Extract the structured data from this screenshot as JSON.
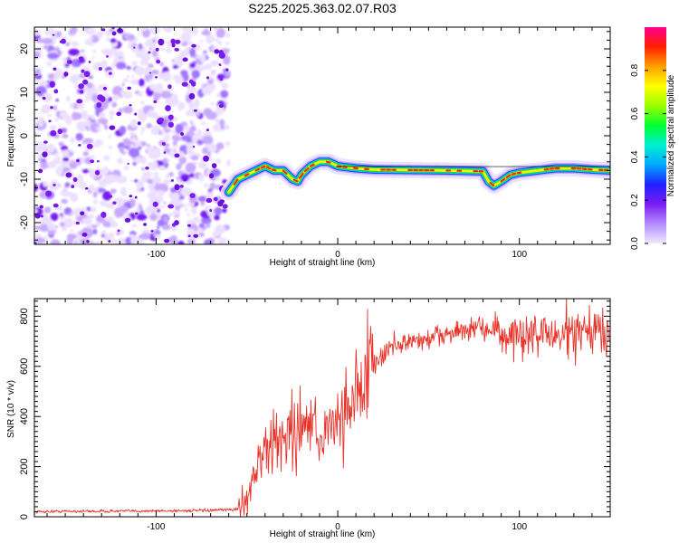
{
  "title": "S225.2025.363.02.07.R03",
  "colors": {
    "line": "#e8332a",
    "ridge_core": "#ff2222",
    "ridge_mid": "#00e040",
    "ridge_edge": "#2040ff",
    "noise": "#7a1cf0",
    "colormap": [
      "#f2e8ff",
      "#b28cff",
      "#7a1cf0",
      "#2020ff",
      "#00a8ff",
      "#00f0d0",
      "#00ff30",
      "#9cff00",
      "#ffff00",
      "#ffa000",
      "#ff2000",
      "#ff0090"
    ]
  },
  "chart_data": [
    {
      "type": "heatmap",
      "name": "spectrogram",
      "xlabel": "Height of straight line (km)",
      "ylabel": "Frequency (Hz)",
      "xlim": [
        -167,
        150
      ],
      "ylim": [
        -25,
        25
      ],
      "xticks": [
        -100,
        0,
        100
      ],
      "yticks": [
        -20,
        -10,
        0,
        10,
        20
      ],
      "colorbar": {
        "label": "Normalized spectral amplitude",
        "range": [
          0,
          1
        ],
        "ticks": [
          "0.0",
          "0.2",
          "0.4",
          "0.6",
          "0.8"
        ]
      },
      "noise_region_x": [
        -167,
        -60
      ],
      "signal_ridge": {
        "x": [
          -60,
          -55,
          -50,
          -45,
          -40,
          -35,
          -30,
          -25,
          -22,
          -20,
          -15,
          -10,
          -5,
          0,
          10,
          20,
          40,
          60,
          80,
          83,
          86,
          90,
          95,
          100,
          110,
          120,
          130,
          140,
          150
        ],
        "freq": [
          -13,
          -10,
          -9,
          -8,
          -7,
          -8,
          -8,
          -10,
          -10.5,
          -9,
          -7,
          -6,
          -6,
          -7,
          -7.5,
          -7.8,
          -7.9,
          -8.0,
          -8.2,
          -10.5,
          -11.5,
          -10.5,
          -9,
          -8.5,
          -8,
          -7.5,
          -7.5,
          -7.8,
          -8.0
        ]
      }
    },
    {
      "type": "line",
      "name": "snr",
      "xlabel": "Height of straight line (km)",
      "ylabel": "SNR (10 * v/v)",
      "xlim": [
        -167,
        150
      ],
      "ylim": [
        0,
        870
      ],
      "xticks": [
        -100,
        0,
        100
      ],
      "yticks": [
        0,
        200,
        400,
        600,
        800
      ],
      "series": [
        {
          "name": "SNR",
          "x": [
            -167,
            -150,
            -130,
            -110,
            -90,
            -70,
            -55,
            -50,
            -48,
            -45,
            -40,
            -35,
            -30,
            -25,
            -20,
            -15,
            -10,
            -5,
            0,
            5,
            10,
            15,
            20,
            25,
            30,
            40,
            50,
            60,
            70,
            80,
            88,
            90,
            92,
            95,
            100,
            110,
            120,
            130,
            140,
            150
          ],
          "values": [
            20,
            22,
            22,
            23,
            24,
            25,
            30,
            80,
            120,
            200,
            260,
            290,
            320,
            350,
            330,
            360,
            300,
            370,
            380,
            450,
            500,
            560,
            600,
            650,
            680,
            700,
            710,
            730,
            740,
            750,
            760,
            720,
            690,
            700,
            710,
            720,
            730,
            720,
            735,
            740
          ]
        }
      ]
    }
  ]
}
